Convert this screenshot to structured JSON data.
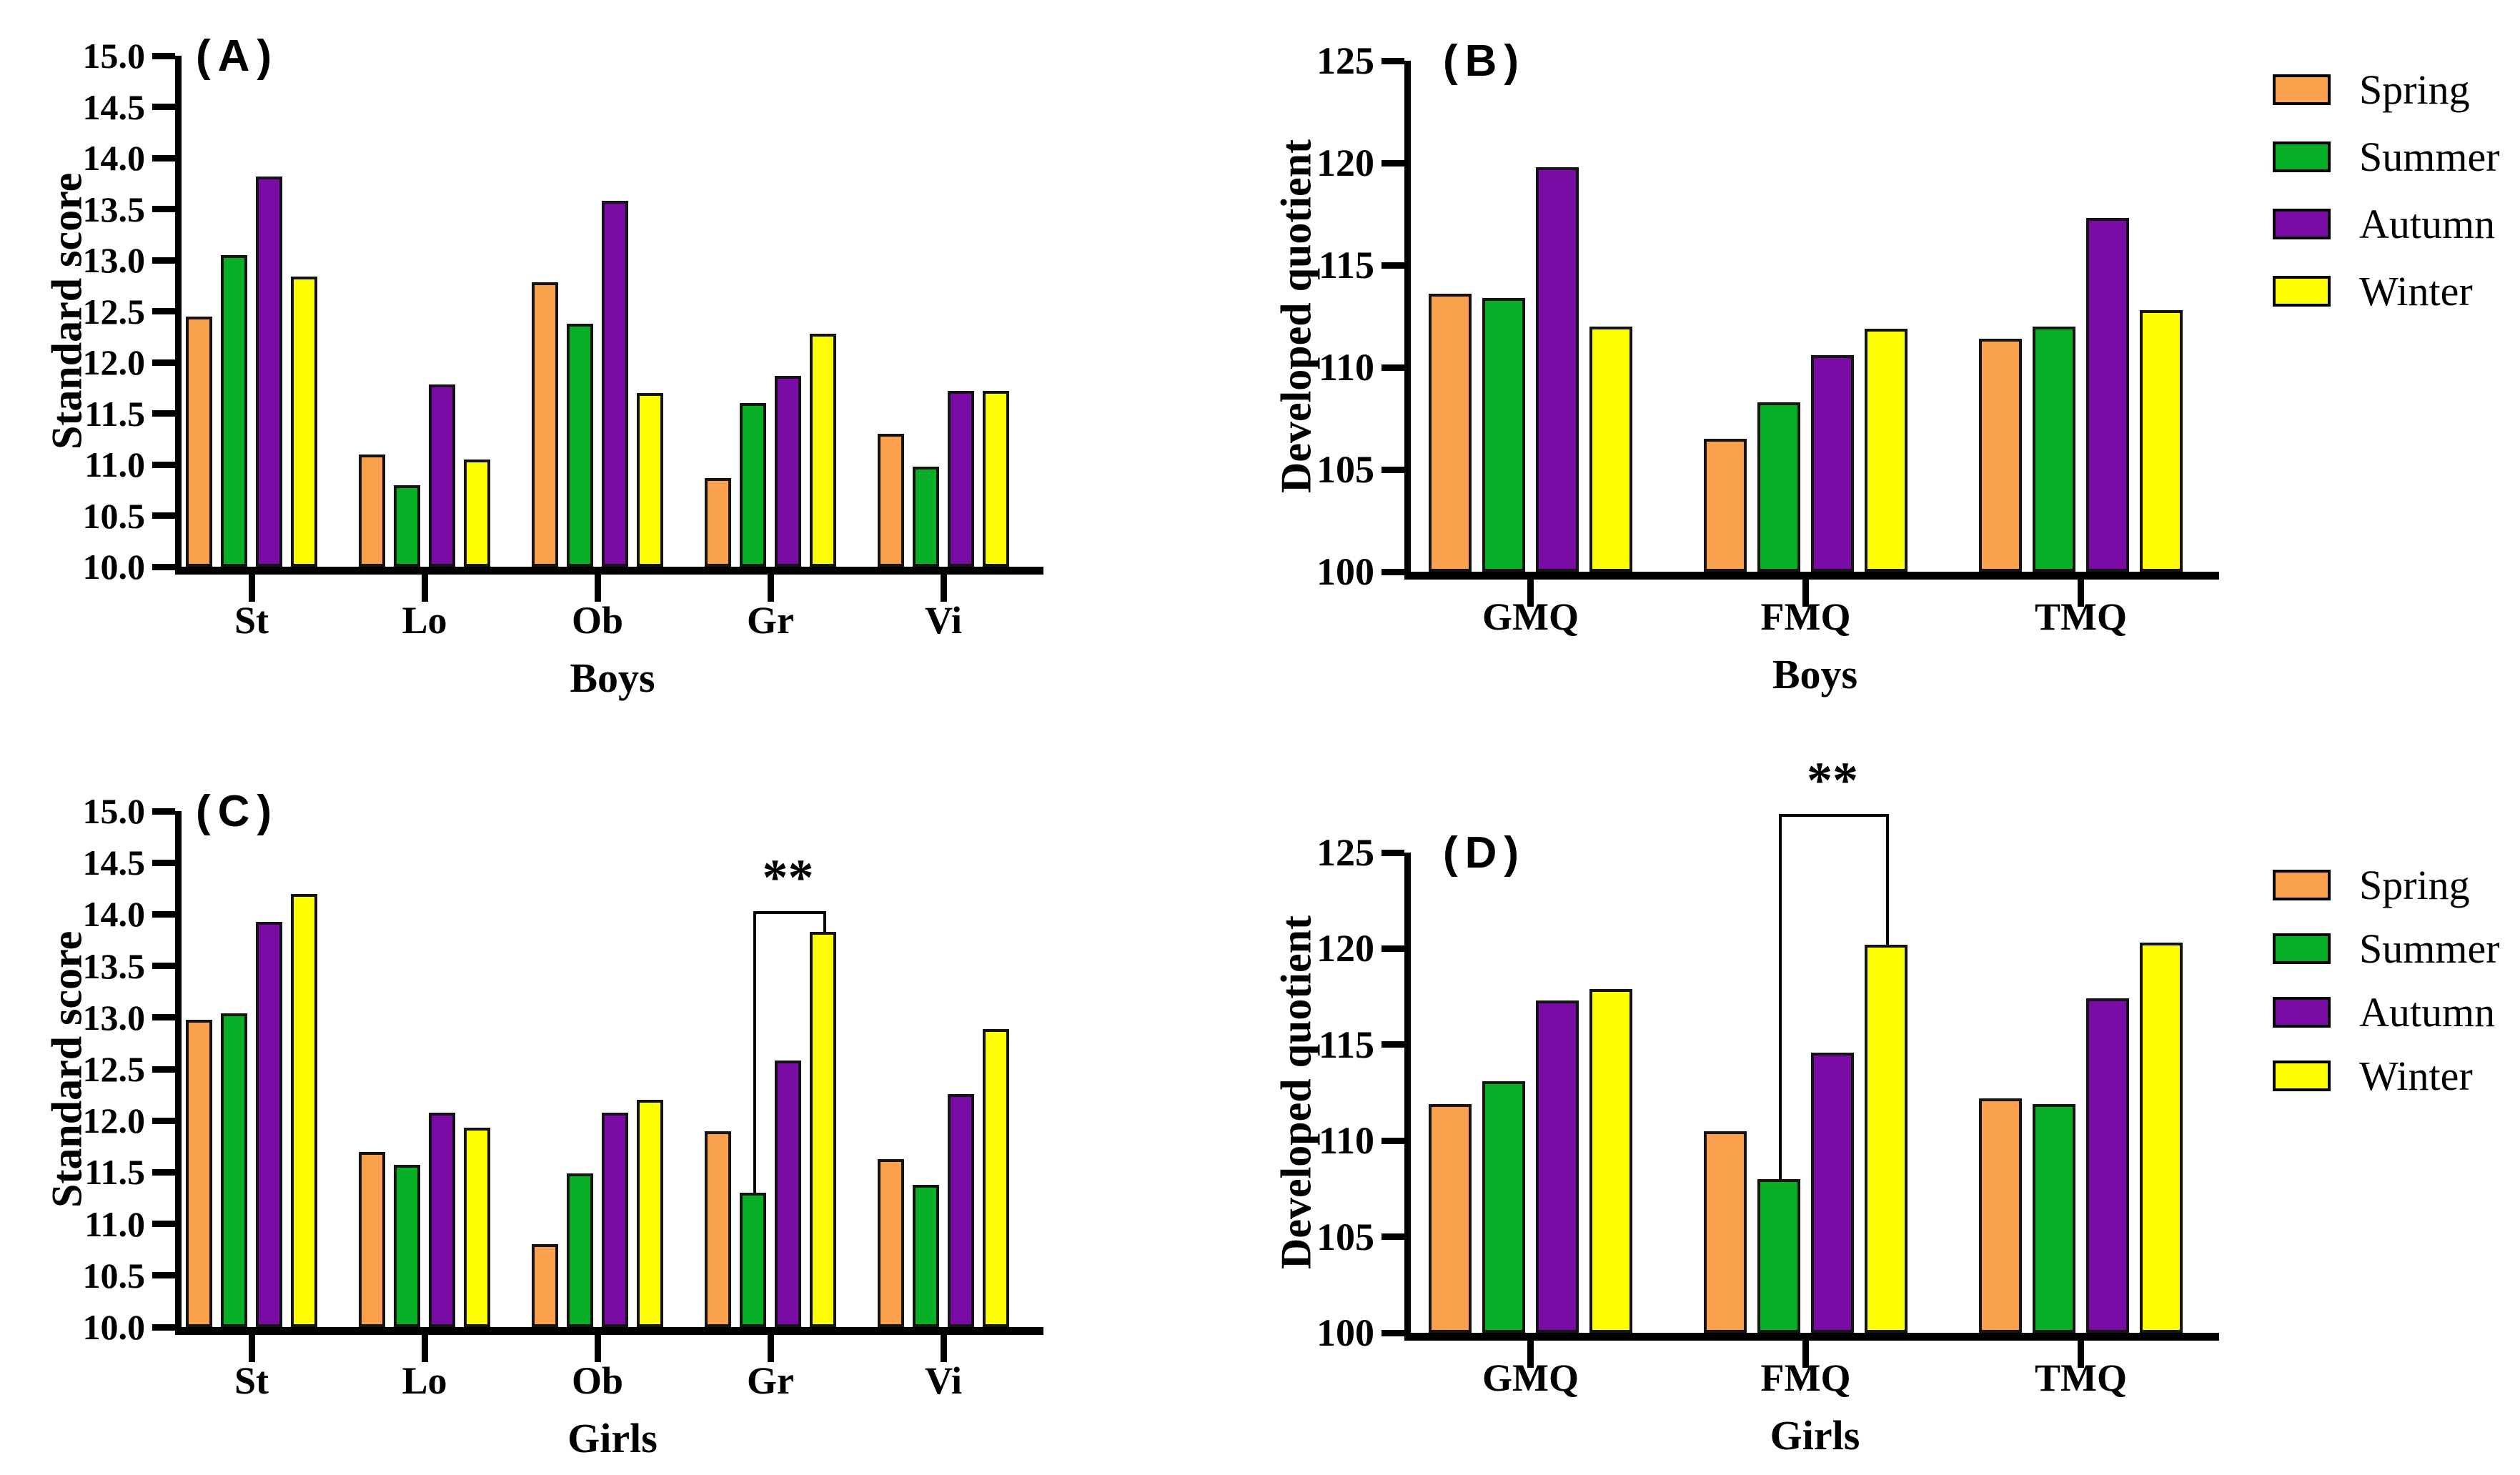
{
  "legend": {
    "items": [
      {
        "label": "Spring",
        "color": "#F9A14D"
      },
      {
        "label": "Summer",
        "color": "#07AF27"
      },
      {
        "label": "Autumn",
        "color": "#7A0BA5"
      },
      {
        "label": "Winter",
        "color": "#FDFF00"
      }
    ]
  },
  "chart_data": [
    {
      "id": "A",
      "type": "bar",
      "panel_label": "(A)",
      "ylabel": "Standard score",
      "xlabel": "Boys",
      "ylim": [
        10.0,
        15.0
      ],
      "ytick_labels": [
        "10.0",
        "10.5",
        "11.0",
        "11.5",
        "12.0",
        "12.5",
        "13.0",
        "13.5",
        "14.0",
        "14.5",
        "15.0"
      ],
      "categories": [
        "St",
        "Lo",
        "Ob",
        "Gr",
        "Vi"
      ],
      "series": [
        {
          "name": "Spring",
          "values": [
            12.45,
            11.1,
            12.78,
            10.87,
            11.3
          ]
        },
        {
          "name": "Summer",
          "values": [
            13.05,
            10.8,
            12.38,
            11.6,
            10.98
          ]
        },
        {
          "name": "Autumn",
          "values": [
            13.82,
            11.78,
            13.58,
            11.87,
            11.72
          ]
        },
        {
          "name": "Winter",
          "values": [
            12.84,
            11.05,
            11.7,
            12.28,
            11.72
          ]
        }
      ],
      "grid": false,
      "legend_position": "right"
    },
    {
      "id": "B",
      "type": "bar",
      "panel_label": "(B)",
      "ylabel": "Developed quotient",
      "xlabel": "Boys",
      "ylim": [
        100,
        125
      ],
      "ytick_labels": [
        "100",
        "105",
        "110",
        "115",
        "120",
        "125"
      ],
      "categories": [
        "GMQ",
        "FMQ",
        "TMQ"
      ],
      "series": [
        {
          "name": "Spring",
          "values": [
            113.6,
            106.5,
            111.4
          ]
        },
        {
          "name": "Summer",
          "values": [
            113.4,
            108.3,
            112.0
          ]
        },
        {
          "name": "Autumn",
          "values": [
            119.8,
            110.6,
            117.3
          ]
        },
        {
          "name": "Winter",
          "values": [
            112.0,
            111.9,
            112.8
          ]
        }
      ],
      "grid": false,
      "legend_position": "right"
    },
    {
      "id": "C",
      "type": "bar",
      "panel_label": "(C)",
      "ylabel": "Standard score",
      "xlabel": "Girls",
      "ylim": [
        10.0,
        15.0
      ],
      "ytick_labels": [
        "10.0",
        "10.5",
        "11.0",
        "11.5",
        "12.0",
        "12.5",
        "13.0",
        "13.5",
        "14.0",
        "14.5",
        "15.0"
      ],
      "categories": [
        "St",
        "Lo",
        "Ob",
        "Gr",
        "Vi"
      ],
      "series": [
        {
          "name": "Spring",
          "values": [
            12.98,
            11.7,
            10.8,
            11.9,
            11.63
          ]
        },
        {
          "name": "Summer",
          "values": [
            13.04,
            11.57,
            11.49,
            11.3,
            11.38
          ]
        },
        {
          "name": "Autumn",
          "values": [
            13.93,
            12.08,
            12.08,
            12.58,
            12.26
          ]
        },
        {
          "name": "Winter",
          "values": [
            14.2,
            11.93,
            12.2,
            13.83,
            12.89
          ]
        }
      ],
      "annotation": {
        "text": "**",
        "category": "Gr",
        "from_series": "Summer",
        "to_series": "Winter",
        "bracket_top": 14.03
      },
      "grid": false
    },
    {
      "id": "D",
      "type": "bar",
      "panel_label": "(D)",
      "ylabel": "Developed quotient",
      "xlabel": "Girls",
      "ylim": [
        100,
        125
      ],
      "ytick_labels": [
        "100",
        "105",
        "110",
        "115",
        "120",
        "125"
      ],
      "categories": [
        "GMQ",
        "FMQ",
        "TMQ"
      ],
      "series": [
        {
          "name": "Spring",
          "values": [
            111.9,
            110.5,
            112.2
          ]
        },
        {
          "name": "Summer",
          "values": [
            113.1,
            108.0,
            111.9
          ]
        },
        {
          "name": "Autumn",
          "values": [
            117.3,
            114.6,
            117.4
          ]
        },
        {
          "name": "Winter",
          "values": [
            117.9,
            120.2,
            120.3
          ]
        }
      ],
      "annotation": {
        "text": "**",
        "category": "FMQ",
        "from_series": "Summer",
        "to_series": "Winter",
        "bracket_top": 127.0
      },
      "grid": false
    }
  ]
}
